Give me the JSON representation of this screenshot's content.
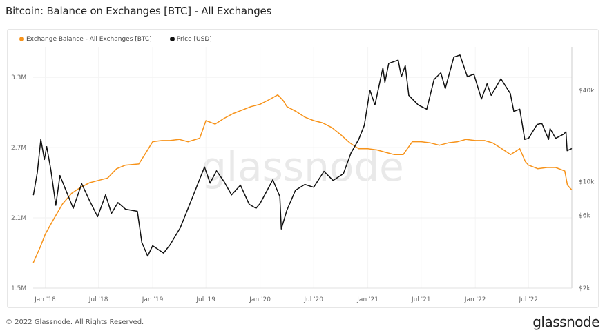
{
  "title": "Bitcoin: Balance on Exchanges [BTC] - All Exchanges",
  "footer": "© 2022 Glassnode. All Rights Reserved.",
  "logo": "glassnode",
  "watermark": "glassnode",
  "chart_data": {
    "type": "line",
    "title": "Bitcoin: Balance on Exchanges [BTC] - All Exchanges",
    "legend_position": "top-left",
    "grid": true,
    "x_ticks": [
      {
        "date": "2018-01-01",
        "label": "Jan '18"
      },
      {
        "date": "2018-07-01",
        "label": "Jul '18"
      },
      {
        "date": "2019-01-01",
        "label": "Jan '19"
      },
      {
        "date": "2019-07-01",
        "label": "Jul '19"
      },
      {
        "date": "2020-01-01",
        "label": "Jan '20"
      },
      {
        "date": "2020-07-01",
        "label": "Jul '20"
      },
      {
        "date": "2021-01-01",
        "label": "Jan '21"
      },
      {
        "date": "2021-07-01",
        "label": "Jul '21"
      },
      {
        "date": "2022-01-01",
        "label": "Jan '22"
      },
      {
        "date": "2022-07-01",
        "label": "Jul '22"
      }
    ],
    "x_range": [
      "2017-11-21",
      "2022-11-25"
    ],
    "y_left": {
      "scale": "linear",
      "range": [
        1.5,
        3.56
      ],
      "unit": "M",
      "ticks": [
        {
          "v": 1.5,
          "label": "1.5M"
        },
        {
          "v": 2.1,
          "label": "2.1M"
        },
        {
          "v": 2.7,
          "label": "2.7M"
        },
        {
          "v": 3.3,
          "label": "3.3M"
        }
      ]
    },
    "y_right": {
      "scale": "log",
      "range": [
        2000,
        77000
      ],
      "ticks": [
        {
          "v": 2000,
          "label": "$2k"
        },
        {
          "v": 6000,
          "label": "$6k"
        },
        {
          "v": 10000,
          "label": "$10k"
        },
        {
          "v": 40000,
          "label": "$40k"
        }
      ]
    },
    "series": [
      {
        "name": "Exchange Balance - All Exchanges [BTC]",
        "axis": "left",
        "color": "#f7931a",
        "points": [
          [
            "2017-11-22",
            1.72
          ],
          [
            "2017-12-15",
            1.85
          ],
          [
            "2018-01-01",
            1.96
          ],
          [
            "2018-02-01",
            2.1
          ],
          [
            "2018-03-01",
            2.22
          ],
          [
            "2018-04-01",
            2.31
          ],
          [
            "2018-05-01",
            2.36
          ],
          [
            "2018-06-01",
            2.4
          ],
          [
            "2018-07-01",
            2.42
          ],
          [
            "2018-08-01",
            2.44
          ],
          [
            "2018-09-01",
            2.52
          ],
          [
            "2018-10-01",
            2.55
          ],
          [
            "2018-11-15",
            2.56
          ],
          [
            "2018-12-10",
            2.66
          ],
          [
            "2019-01-01",
            2.75
          ],
          [
            "2019-02-01",
            2.76
          ],
          [
            "2019-03-01",
            2.76
          ],
          [
            "2019-04-01",
            2.77
          ],
          [
            "2019-05-01",
            2.75
          ],
          [
            "2019-06-10",
            2.78
          ],
          [
            "2019-07-01",
            2.93
          ],
          [
            "2019-08-01",
            2.9
          ],
          [
            "2019-09-01",
            2.95
          ],
          [
            "2019-10-01",
            2.99
          ],
          [
            "2019-11-01",
            3.02
          ],
          [
            "2019-12-01",
            3.05
          ],
          [
            "2020-01-01",
            3.07
          ],
          [
            "2020-02-01",
            3.11
          ],
          [
            "2020-03-01",
            3.15
          ],
          [
            "2020-03-20",
            3.1
          ],
          [
            "2020-04-01",
            3.05
          ],
          [
            "2020-05-01",
            3.01
          ],
          [
            "2020-06-01",
            2.96
          ],
          [
            "2020-07-01",
            2.93
          ],
          [
            "2020-08-01",
            2.91
          ],
          [
            "2020-09-01",
            2.87
          ],
          [
            "2020-10-01",
            2.81
          ],
          [
            "2020-11-01",
            2.74
          ],
          [
            "2020-12-01",
            2.69
          ],
          [
            "2021-01-01",
            2.69
          ],
          [
            "2021-02-01",
            2.68
          ],
          [
            "2021-03-01",
            2.66
          ],
          [
            "2021-04-01",
            2.64
          ],
          [
            "2021-05-01",
            2.64
          ],
          [
            "2021-06-01",
            2.75
          ],
          [
            "2021-07-01",
            2.75
          ],
          [
            "2021-08-01",
            2.74
          ],
          [
            "2021-09-01",
            2.72
          ],
          [
            "2021-10-01",
            2.74
          ],
          [
            "2021-11-01",
            2.75
          ],
          [
            "2021-12-01",
            2.77
          ],
          [
            "2022-01-01",
            2.76
          ],
          [
            "2022-02-01",
            2.76
          ],
          [
            "2022-03-01",
            2.74
          ],
          [
            "2022-04-01",
            2.69
          ],
          [
            "2022-05-01",
            2.64
          ],
          [
            "2022-06-01",
            2.69
          ],
          [
            "2022-06-20",
            2.58
          ],
          [
            "2022-07-01",
            2.55
          ],
          [
            "2022-08-01",
            2.52
          ],
          [
            "2022-09-01",
            2.53
          ],
          [
            "2022-10-01",
            2.53
          ],
          [
            "2022-11-01",
            2.5
          ],
          [
            "2022-11-10",
            2.38
          ],
          [
            "2022-11-24",
            2.34
          ]
        ]
      },
      {
        "name": "Price [USD]",
        "axis": "right",
        "color": "#111111",
        "points": [
          [
            "2017-11-22",
            8200
          ],
          [
            "2017-12-05",
            11500
          ],
          [
            "2017-12-17",
            19000
          ],
          [
            "2017-12-29",
            14000
          ],
          [
            "2018-01-06",
            17000
          ],
          [
            "2018-01-20",
            12000
          ],
          [
            "2018-02-06",
            7000
          ],
          [
            "2018-02-20",
            11000
          ],
          [
            "2018-03-10",
            9000
          ],
          [
            "2018-04-06",
            6700
          ],
          [
            "2018-05-05",
            9700
          ],
          [
            "2018-06-01",
            7500
          ],
          [
            "2018-06-28",
            5900
          ],
          [
            "2018-07-25",
            8200
          ],
          [
            "2018-08-14",
            6200
          ],
          [
            "2018-09-05",
            7300
          ],
          [
            "2018-10-01",
            6600
          ],
          [
            "2018-11-10",
            6400
          ],
          [
            "2018-11-25",
            4000
          ],
          [
            "2018-12-15",
            3250
          ],
          [
            "2019-01-01",
            3800
          ],
          [
            "2019-02-07",
            3400
          ],
          [
            "2019-03-01",
            3850
          ],
          [
            "2019-04-05",
            5000
          ],
          [
            "2019-05-15",
            7800
          ],
          [
            "2019-06-26",
            12500
          ],
          [
            "2019-07-15",
            9800
          ],
          [
            "2019-08-06",
            11800
          ],
          [
            "2019-09-01",
            10000
          ],
          [
            "2019-09-26",
            8200
          ],
          [
            "2019-10-26",
            9500
          ],
          [
            "2019-11-25",
            7100
          ],
          [
            "2019-12-18",
            6700
          ],
          [
            "2020-01-01",
            7200
          ],
          [
            "2020-02-13",
            10300
          ],
          [
            "2020-03-08",
            8000
          ],
          [
            "2020-03-13",
            4900
          ],
          [
            "2020-04-01",
            6500
          ],
          [
            "2020-04-30",
            8800
          ],
          [
            "2020-06-01",
            9600
          ],
          [
            "2020-07-01",
            9200
          ],
          [
            "2020-08-05",
            11700
          ],
          [
            "2020-09-05",
            10200
          ],
          [
            "2020-10-10",
            11300
          ],
          [
            "2020-11-05",
            15500
          ],
          [
            "2020-12-01",
            19000
          ],
          [
            "2020-12-20",
            23500
          ],
          [
            "2021-01-08",
            40000
          ],
          [
            "2021-01-25",
            32000
          ],
          [
            "2021-02-21",
            56000
          ],
          [
            "2021-02-28",
            45000
          ],
          [
            "2021-03-13",
            60000
          ],
          [
            "2021-04-14",
            63000
          ],
          [
            "2021-04-25",
            49000
          ],
          [
            "2021-05-08",
            58000
          ],
          [
            "2021-05-20",
            37000
          ],
          [
            "2021-06-21",
            32000
          ],
          [
            "2021-07-20",
            30000
          ],
          [
            "2021-08-14",
            47000
          ],
          [
            "2021-09-06",
            52000
          ],
          [
            "2021-09-21",
            41000
          ],
          [
            "2021-10-20",
            66000
          ],
          [
            "2021-11-10",
            68000
          ],
          [
            "2021-12-05",
            49000
          ],
          [
            "2021-12-27",
            51000
          ],
          [
            "2022-01-22",
            35000
          ],
          [
            "2022-02-10",
            44000
          ],
          [
            "2022-02-24",
            37000
          ],
          [
            "2022-03-29",
            47500
          ],
          [
            "2022-04-30",
            38000
          ],
          [
            "2022-05-12",
            29000
          ],
          [
            "2022-06-01",
            30000
          ],
          [
            "2022-06-18",
            19000
          ],
          [
            "2022-07-01",
            19300
          ],
          [
            "2022-07-30",
            23800
          ],
          [
            "2022-08-15",
            24200
          ],
          [
            "2022-09-07",
            19000
          ],
          [
            "2022-09-12",
            22300
          ],
          [
            "2022-10-01",
            19300
          ],
          [
            "2022-10-29",
            20600
          ],
          [
            "2022-11-05",
            21300
          ],
          [
            "2022-11-09",
            16000
          ],
          [
            "2022-11-24",
            16500
          ]
        ]
      }
    ]
  }
}
